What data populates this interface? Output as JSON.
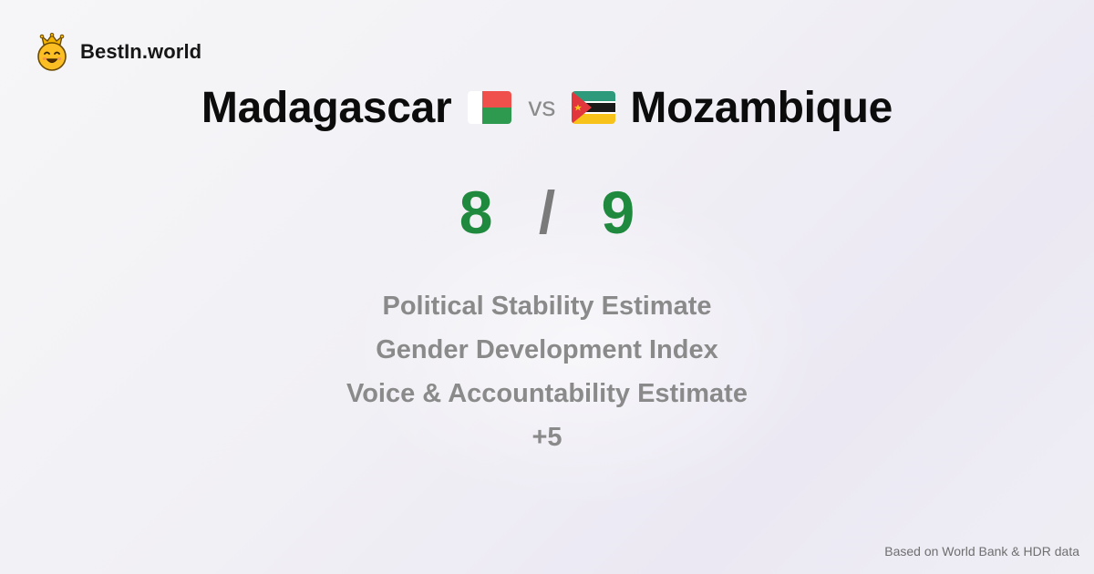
{
  "brand": {
    "name": "BestIn.world",
    "logo_icon": "crowned-smiley-icon"
  },
  "comparison": {
    "left_country": "Madagascar",
    "left_flag": "madagascar-flag-icon",
    "vs_label": "vs",
    "right_country": "Mozambique",
    "right_flag": "mozambique-flag-icon"
  },
  "score": {
    "left": "8",
    "separator": "/",
    "right": "9",
    "color": "#1f8a3d"
  },
  "metrics": [
    "Political Stability Estimate",
    "Gender Development Index",
    "Voice & Accountability Estimate",
    "+5"
  ],
  "footer": {
    "source": "Based on World Bank & HDR data"
  }
}
